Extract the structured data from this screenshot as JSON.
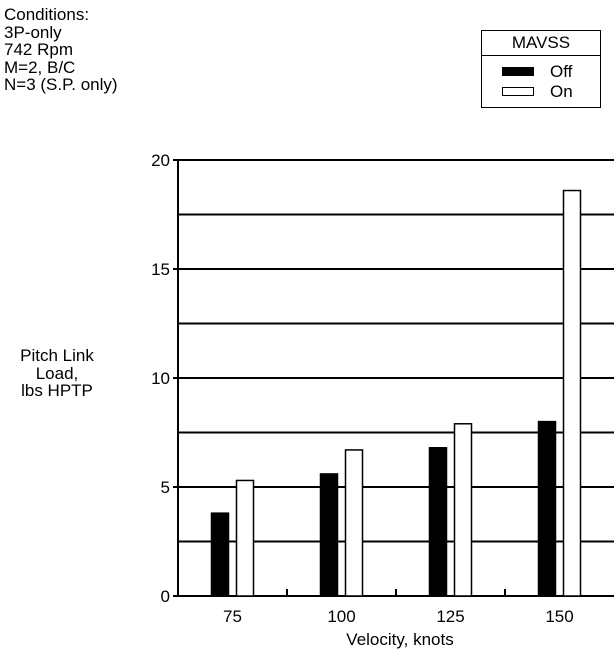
{
  "conditions": [
    "Conditions:",
    "3P-only",
    "742 Rpm",
    "M=2, B/C",
    "N=3 (S.P. only)"
  ],
  "legend": {
    "title": "MAVSS",
    "items": [
      {
        "label": "Off",
        "color": "#000000"
      },
      {
        "label": "On",
        "color": "#ffffff"
      }
    ]
  },
  "chart_data": {
    "type": "bar",
    "categories": [
      "75",
      "100",
      "125",
      "150"
    ],
    "series": [
      {
        "name": "Off",
        "values": [
          3.8,
          5.6,
          6.8,
          8.0
        ]
      },
      {
        "name": "On",
        "values": [
          5.3,
          6.7,
          7.9,
          18.6
        ]
      }
    ],
    "ylim": [
      0,
      20
    ],
    "yticks": [
      "0",
      "5",
      "10",
      "15",
      "20"
    ],
    "xlabel": "Velocity, knots",
    "ylabel_lines": [
      "Pitch Link",
      "Load,",
      "lbs HPTP"
    ],
    "grid": true,
    "legend_position": "top-right"
  }
}
